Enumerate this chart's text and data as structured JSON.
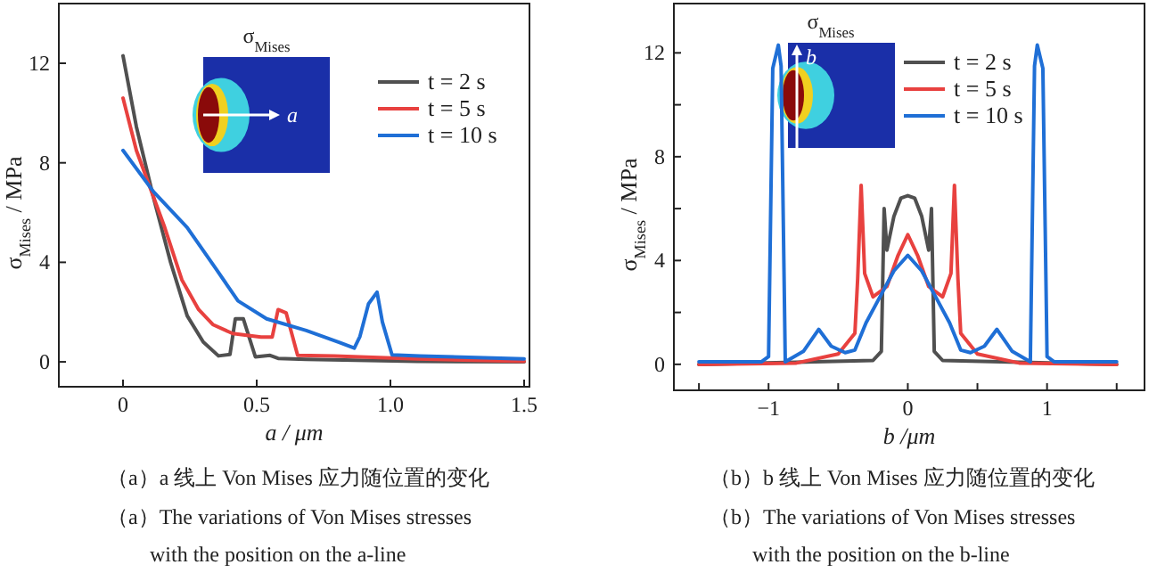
{
  "chart_data": [
    {
      "type": "line",
      "xlabel": "a / μm",
      "ylabel": "σ$_{Mises}$ / MPa",
      "xlim": [
        -0.24,
        1.52
      ],
      "ylim": [
        -1,
        14.4
      ],
      "xticks": [
        0,
        0.5,
        {
          "value": 1,
          "label": "1.0"
        },
        1.5
      ],
      "yticks": [
        0,
        4,
        8,
        12
      ],
      "legend": "top right",
      "grid": false,
      "line_style": "solid",
      "marker": "none",
      "series": [
        {
          "name": "t = 2 s",
          "color": "#505050",
          "x": [
            0,
            0.05,
            0.114,
            0.178,
            0.24,
            0.3,
            0.357,
            0.4,
            0.42,
            0.45,
            0.495,
            0.55,
            0.58,
            0.685,
            1.1,
            1.5
          ],
          "values": [
            12.3,
            9.45,
            6.6,
            4.0,
            1.85,
            0.8,
            0.24,
            0.3,
            1.73,
            1.73,
            0.2,
            0.26,
            0.14,
            0.1,
            0.02,
            0
          ]
        },
        {
          "name": "t = 5 s",
          "color": "#e8413f",
          "x": [
            0,
            0.05,
            0.156,
            0.22,
            0.283,
            0.336,
            0.41,
            0.516,
            0.558,
            0.58,
            0.61,
            0.653,
            0.79,
            1.1,
            1.5
          ],
          "values": [
            10.6,
            8.5,
            5.4,
            3.3,
            2.1,
            1.5,
            1.14,
            1.0,
            1.0,
            2.1,
            1.97,
            0.26,
            0.24,
            0.12,
            0.02
          ]
        },
        {
          "name": "t = 10 s",
          "color": "#1f6fd6",
          "x": [
            0,
            0.114,
            0.24,
            0.347,
            0.43,
            0.537,
            0.685,
            0.81,
            0.865,
            0.886,
            0.918,
            0.95,
            0.97,
            1.006,
            1.11,
            1.5
          ],
          "values": [
            8.5,
            6.84,
            5.4,
            3.75,
            2.45,
            1.73,
            1.26,
            0.78,
            0.55,
            1.02,
            2.33,
            2.8,
            1.6,
            0.28,
            0.24,
            0.12
          ]
        }
      ],
      "annotations": [
        "σ$_{Mises}$",
        "a",
        "（a）a 线上 Von Mises 应力随位置的变化",
        "（a）The variations of Von Mises stresses",
        "with the position on the a-line"
      ]
    },
    {
      "type": "line",
      "xlabel": "b /μm",
      "ylabel": "σ$_{Mises}$ / MPa",
      "xlim": [
        -1.68,
        1.7
      ],
      "ylim": [
        -1,
        13.9
      ],
      "xticks": [
        {
          "value": -1.5,
          "label": null
        },
        {
          "value": -1,
          "label": "−1"
        },
        {
          "value": -0.5,
          "label": null
        },
        0,
        {
          "value": 0.5,
          "label": null
        },
        1,
        {
          "value": 1.5,
          "label": null
        }
      ],
      "yticks": [
        0,
        {
          "value": 2,
          "label": null
        },
        4,
        {
          "value": 6,
          "label": null
        },
        8,
        {
          "value": 10,
          "label": null
        },
        12
      ],
      "legend": "top right",
      "grid": false,
      "line_style": "solid",
      "marker": "none",
      "series": [
        {
          "name": "t = 2 s",
          "color": "#505050",
          "x": [
            -1.5,
            -0.25,
            -0.19,
            -0.17,
            -0.15,
            -0.1,
            -0.05,
            0,
            0.05,
            0.1,
            0.15,
            0.17,
            0.19,
            0.25,
            1.5
          ],
          "values": [
            0,
            0.15,
            0.5,
            6.0,
            4.4,
            5.7,
            6.4,
            6.5,
            6.4,
            5.7,
            4.4,
            6.0,
            0.5,
            0.15,
            0
          ]
        },
        {
          "name": "t = 5 s",
          "color": "#e8413f",
          "x": [
            -1.5,
            -0.8,
            -0.5,
            -0.38,
            -0.36,
            -0.335,
            -0.31,
            -0.25,
            -0.15,
            -0.07,
            0,
            0.07,
            0.15,
            0.25,
            0.31,
            0.335,
            0.36,
            0.38,
            0.5,
            0.8,
            1.5
          ],
          "values": [
            0,
            0.05,
            0.4,
            1.2,
            3.3,
            6.9,
            3.5,
            2.6,
            3.0,
            4.2,
            5.0,
            4.2,
            3.0,
            2.6,
            3.5,
            6.9,
            3.3,
            1.2,
            0.4,
            0.05,
            0
          ]
        },
        {
          "name": "t = 10 s",
          "color": "#1f6fd6",
          "x": [
            -1.5,
            -1.05,
            -1.0,
            -0.97,
            -0.93,
            -0.91,
            -0.88,
            -0.75,
            -0.64,
            -0.55,
            -0.45,
            -0.38,
            -0.3,
            -0.2,
            -0.1,
            0,
            0.1,
            0.2,
            0.3,
            0.38,
            0.45,
            0.55,
            0.64,
            0.75,
            0.88,
            0.91,
            0.93,
            0.97,
            1.0,
            1.05,
            1.5
          ],
          "values": [
            0.1,
            0.1,
            0.3,
            11.4,
            12.3,
            11.5,
            0.1,
            0.5,
            1.35,
            0.7,
            0.45,
            0.55,
            1.6,
            2.6,
            3.6,
            4.2,
            3.6,
            2.6,
            1.6,
            0.55,
            0.45,
            0.7,
            1.35,
            0.5,
            0.1,
            11.5,
            12.3,
            11.4,
            0.3,
            0.1,
            0.1
          ]
        }
      ],
      "annotations": [
        "σ$_{Mises}$",
        "b",
        "（b）b 线上 Von Mises 应力随位置的变化",
        "（b）The variations of Von Mises stresses",
        "with the position on the b-line"
      ]
    }
  ]
}
